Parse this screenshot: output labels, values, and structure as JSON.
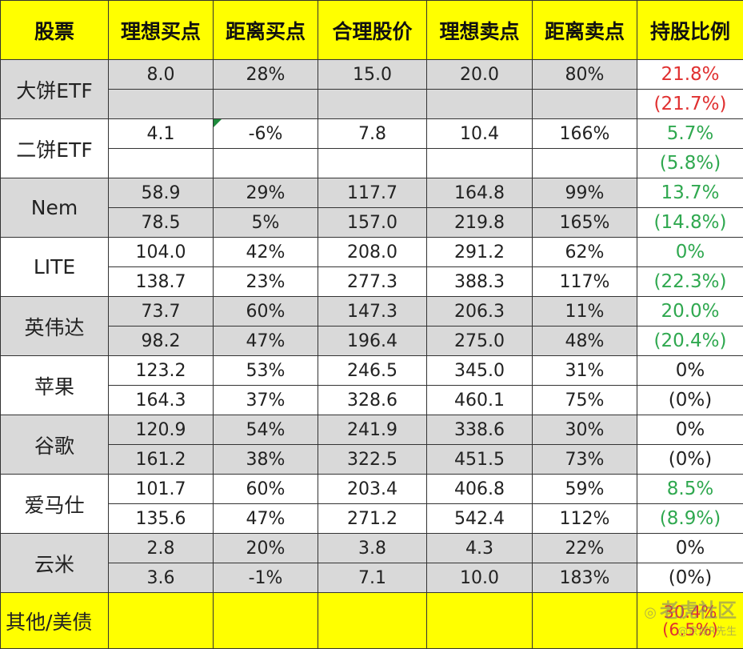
{
  "colors": {
    "header_bg": "#ffff00",
    "row_shaded_bg": "#d9d9d9",
    "red": "#e03030",
    "green": "#2fa84f",
    "black": "#222222"
  },
  "headers": [
    "股票",
    "理想买点",
    "距离买点",
    "合理股价",
    "理想卖点",
    "距离卖点",
    "持股比例"
  ],
  "rows": [
    {
      "name": "大饼ETF",
      "shade": "shaded",
      "pct_color": "#e03030",
      "pct1": "21.8%",
      "pct2": "(21.7%)",
      "lines": [
        [
          "8.0",
          "28%",
          "15.0",
          "20.0",
          "80%"
        ],
        [
          "",
          "",
          "",
          "",
          ""
        ]
      ]
    },
    {
      "name": "二饼ETF",
      "shade": "plain",
      "pct_color": "#2fa84f",
      "pct1": "5.7%",
      "pct2": "(5.8%)",
      "lines": [
        [
          "4.1",
          "-6%",
          "7.8",
          "10.4",
          "166%"
        ],
        [
          "",
          "",
          "",
          "",
          ""
        ]
      ]
    },
    {
      "name": "Nem",
      "shade": "shaded",
      "pct_color": "#2fa84f",
      "pct1": "13.7%",
      "pct2": "(14.8%)",
      "lines": [
        [
          "58.9",
          "29%",
          "117.7",
          "164.8",
          "99%"
        ],
        [
          "78.5",
          "5%",
          "157.0",
          "219.8",
          "165%"
        ]
      ]
    },
    {
      "name": "LITE",
      "shade": "plain",
      "pct_color": "#2fa84f",
      "pct1": "0%",
      "pct2": "(22.3%)",
      "lines": [
        [
          "104.0",
          "42%",
          "208.0",
          "291.2",
          "62%"
        ],
        [
          "138.7",
          "23%",
          "277.3",
          "388.3",
          "117%"
        ]
      ]
    },
    {
      "name": "英伟达",
      "shade": "shaded",
      "pct_color": "#2fa84f",
      "pct1": "20.0%",
      "pct2": "(20.4%)",
      "lines": [
        [
          "73.7",
          "60%",
          "147.3",
          "206.3",
          "11%"
        ],
        [
          "98.2",
          "47%",
          "196.4",
          "275.0",
          "48%"
        ]
      ]
    },
    {
      "name": "苹果",
      "shade": "plain",
      "pct_color": "#222222",
      "pct1": "0%",
      "pct2": "(0%)",
      "lines": [
        [
          "123.2",
          "53%",
          "246.5",
          "345.0",
          "31%"
        ],
        [
          "164.3",
          "37%",
          "328.6",
          "460.1",
          "75%"
        ]
      ]
    },
    {
      "name": "谷歌",
      "shade": "shaded",
      "pct_color": "#222222",
      "pct1": "0%",
      "pct2": "(0%)",
      "lines": [
        [
          "120.9",
          "54%",
          "241.9",
          "338.6",
          "30%"
        ],
        [
          "161.2",
          "38%",
          "322.5",
          "451.5",
          "73%"
        ]
      ]
    },
    {
      "name": "爱马仕",
      "shade": "plain",
      "pct_color": "#2fa84f",
      "pct1": "8.5%",
      "pct2": "(8.9%)",
      "lines": [
        [
          "101.7",
          "60%",
          "203.4",
          "406.8",
          "59%"
        ],
        [
          "135.6",
          "47%",
          "271.2",
          "542.4",
          "112%"
        ]
      ]
    },
    {
      "name": "云米",
      "shade": "shaded",
      "pct_color": "#222222",
      "pct1": "0%",
      "pct2": "(0%)",
      "lines": [
        [
          "2.8",
          "20%",
          "3.8",
          "4.3",
          "22%"
        ],
        [
          "3.6",
          "-1%",
          "7.1",
          "10.0",
          "183%"
        ]
      ]
    }
  ],
  "footer": {
    "name": "其他/美债",
    "pct1": "30.4%",
    "pct2": "(6.5%)"
  },
  "watermark": {
    "logo": "老虎社区",
    "user": "@京城R先生"
  }
}
